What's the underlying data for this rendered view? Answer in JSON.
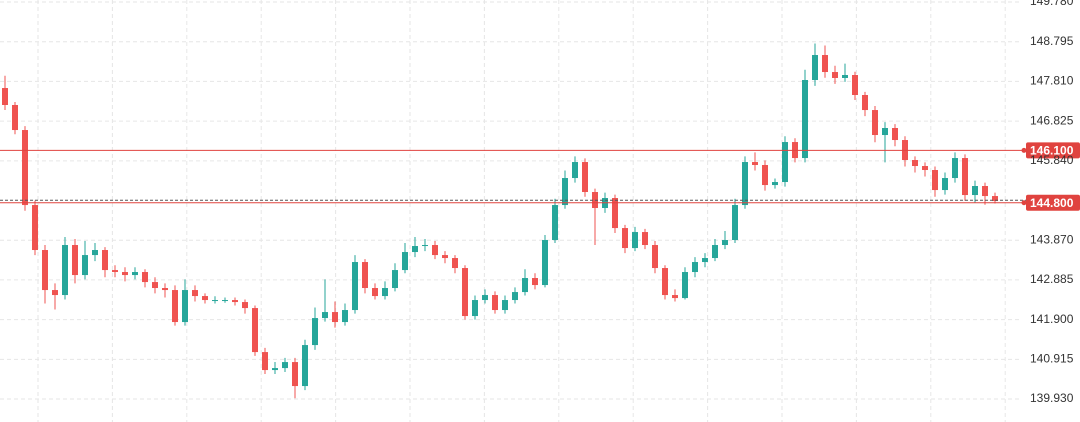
{
  "chart_data": {
    "type": "candlestick",
    "up_color": "#26a69a",
    "down_color": "#ef5350",
    "ylim": [
      139.36,
      149.83
    ],
    "yticks": [
      {
        "value": 149.78,
        "label": "149.780"
      },
      {
        "value": 148.795,
        "label": "148.795"
      },
      {
        "value": 147.81,
        "label": "147.810"
      },
      {
        "value": 146.825,
        "label": "146.825"
      },
      {
        "value": 145.84,
        "label": "145.840"
      },
      {
        "value": 143.87,
        "label": "143.870"
      },
      {
        "value": 142.885,
        "label": "142.885"
      },
      {
        "value": 141.9,
        "label": "141.900"
      },
      {
        "value": 140.915,
        "label": "140.915"
      },
      {
        "value": 139.93,
        "label": "139.930"
      }
    ],
    "grid": true,
    "price_lines": [
      {
        "value": 146.1,
        "label": "146.100",
        "color": "#e0433f"
      },
      {
        "value": 144.8,
        "label": "144.800",
        "color": "#e0433f"
      }
    ],
    "open": [
      147.646,
      147.225,
      146.604,
      144.743,
      143.627,
      142.634,
      142.51,
      143.751,
      143.006,
      143.502,
      143.627,
      143.13,
      143.081,
      143.006,
      143.081,
      142.832,
      142.684,
      142.634,
      141.84,
      142.634,
      142.485,
      142.386,
      142.386,
      142.386,
      142.336,
      142.187,
      141.095,
      140.649,
      140.698,
      140.847,
      140.252,
      141.269,
      141.939,
      142.088,
      141.84,
      142.138,
      143.329,
      142.684,
      142.485,
      142.684,
      143.13,
      143.577,
      143.726,
      143.751,
      143.502,
      143.428,
      143.18,
      141.989,
      142.386,
      142.51,
      142.138,
      142.386,
      142.584,
      142.932,
      142.758,
      143.875,
      144.743,
      145.413,
      145.81,
      145.066,
      144.669,
      144.917,
      144.172,
      143.676,
      144.073,
      143.751,
      143.18,
      142.51,
      142.435,
      143.081,
      143.329,
      143.428,
      143.751,
      143.875,
      144.743,
      145.81,
      145.736,
      145.239,
      145.314,
      146.306,
      145.909,
      147.845,
      148.465,
      148.043,
      147.895,
      147.969,
      147.473,
      147.1,
      146.48,
      146.654,
      146.356,
      145.86,
      145.711,
      145.612,
      145.115,
      145.413,
      145.909,
      144.991,
      145.215,
      144.966
    ],
    "high": [
      147.95,
      147.3,
      146.7,
      144.85,
      143.75,
      142.8,
      143.95,
      143.9,
      143.85,
      143.8,
      143.7,
      143.25,
      143.2,
      143.2,
      143.15,
      142.95,
      142.8,
      142.75,
      142.9,
      142.75,
      142.55,
      142.48,
      142.45,
      142.45,
      142.4,
      142.25,
      141.2,
      140.85,
      140.95,
      140.95,
      141.4,
      142.2,
      142.9,
      142.35,
      142.3,
      143.5,
      143.4,
      142.8,
      142.85,
      143.3,
      143.8,
      143.95,
      143.9,
      143.85,
      143.6,
      143.5,
      143.25,
      142.5,
      142.65,
      142.6,
      142.5,
      142.7,
      143.15,
      143.05,
      144.0,
      144.9,
      145.6,
      145.95,
      145.9,
      145.15,
      145.05,
      145.0,
      144.25,
      144.2,
      144.15,
      143.85,
      143.25,
      142.65,
      143.2,
      143.45,
      143.55,
      143.9,
      144.1,
      144.9,
      145.95,
      146.05,
      145.85,
      145.4,
      146.45,
      146.4,
      148.1,
      148.75,
      148.7,
      148.2,
      148.25,
      148.05,
      147.55,
      147.2,
      146.8,
      146.75,
      146.45,
      145.95,
      145.8,
      145.7,
      145.55,
      146.05,
      146.0,
      145.35,
      145.3,
      145.05
    ],
    "low": [
      147.1,
      146.5,
      144.6,
      143.5,
      142.3,
      142.15,
      142.4,
      142.8,
      142.9,
      143.35,
      142.95,
      142.95,
      142.85,
      142.9,
      142.7,
      142.55,
      142.45,
      141.75,
      141.75,
      142.35,
      142.3,
      142.3,
      142.32,
      142.25,
      142.05,
      141.0,
      140.55,
      140.55,
      140.6,
      139.95,
      140.15,
      141.15,
      141.85,
      141.7,
      141.75,
      142.05,
      142.55,
      142.4,
      142.4,
      142.6,
      143.05,
      143.45,
      143.6,
      143.4,
      143.3,
      143.05,
      141.9,
      141.9,
      142.3,
      142.05,
      142.05,
      142.3,
      142.5,
      142.65,
      142.7,
      143.8,
      144.65,
      145.3,
      144.95,
      143.75,
      144.55,
      144.05,
      143.55,
      143.6,
      143.65,
      143.05,
      142.4,
      142.35,
      142.4,
      142.95,
      143.2,
      143.35,
      143.65,
      143.8,
      144.65,
      145.6,
      145.1,
      145.15,
      145.2,
      145.8,
      145.8,
      147.7,
      147.9,
      147.75,
      147.8,
      147.35,
      146.95,
      146.3,
      145.8,
      146.2,
      145.7,
      145.55,
      145.45,
      144.95,
      145.0,
      145.3,
      144.85,
      144.8,
      144.75,
      144.78
    ],
    "close": [
      147.225,
      146.604,
      144.743,
      143.627,
      142.634,
      142.51,
      143.751,
      143.006,
      143.502,
      143.627,
      143.13,
      143.081,
      143.006,
      143.081,
      142.832,
      142.684,
      142.634,
      141.84,
      142.634,
      142.485,
      142.386,
      142.386,
      142.386,
      142.336,
      142.187,
      141.095,
      140.649,
      140.698,
      140.847,
      140.252,
      141.269,
      141.939,
      142.088,
      141.84,
      142.138,
      143.329,
      142.684,
      142.485,
      142.684,
      143.13,
      143.577,
      143.726,
      143.751,
      143.502,
      143.428,
      143.18,
      141.989,
      142.386,
      142.51,
      142.138,
      142.386,
      142.584,
      142.932,
      142.758,
      143.875,
      144.743,
      145.413,
      145.81,
      145.066,
      144.669,
      144.917,
      144.172,
      143.676,
      144.073,
      143.751,
      143.18,
      142.51,
      142.435,
      143.081,
      143.329,
      143.428,
      143.751,
      143.875,
      144.743,
      145.81,
      145.736,
      145.239,
      145.314,
      146.306,
      145.909,
      147.845,
      148.465,
      148.043,
      147.895,
      147.969,
      147.473,
      147.1,
      146.48,
      146.654,
      146.356,
      145.86,
      145.711,
      145.612,
      145.115,
      145.413,
      145.909,
      144.991,
      145.215,
      144.966,
      144.842
    ]
  }
}
